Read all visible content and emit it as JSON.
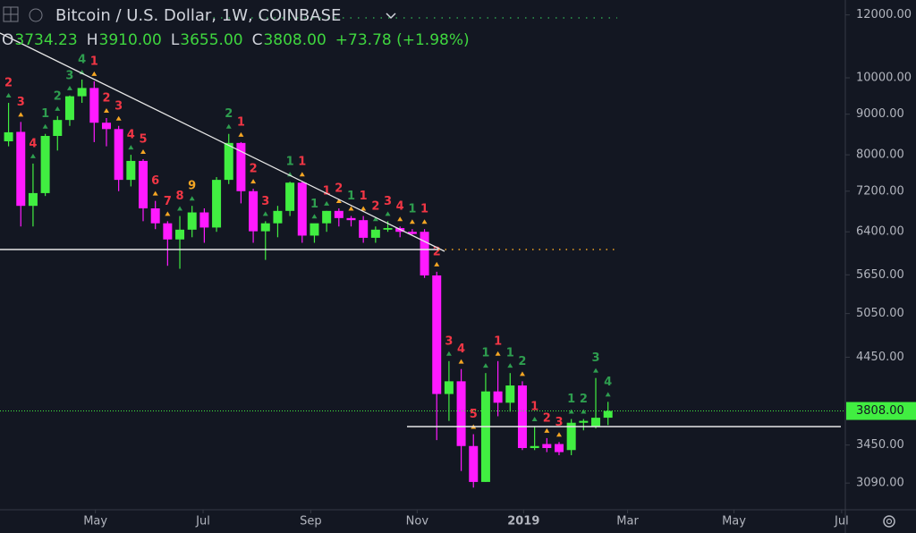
{
  "header": {
    "title": "Bitcoin / U.S. Dollar, 1W, COINBASE",
    "ohlc": [
      {
        "key": "O",
        "value": "3734.23"
      },
      {
        "key": "H",
        "value": "3910.00"
      },
      {
        "key": "L",
        "value": "3655.00"
      },
      {
        "key": "C",
        "value": "3808.00"
      }
    ],
    "change": "+73.78 (+1.98%)"
  },
  "chart_data": {
    "type": "candlestick",
    "log_scale": true,
    "up_color": "#41ee41",
    "down_color": "#ff1aff",
    "open": [
      8320,
      8550,
      6900,
      7160,
      8450,
      8850,
      9480,
      9710,
      8780,
      8620,
      7440,
      7860,
      6850,
      6560,
      6260,
      6440,
      6770,
      6480,
      7440,
      8280,
      7200,
      6410,
      6560,
      6800,
      7380,
      6330,
      6560,
      6800,
      6660,
      6620,
      6290,
      6440,
      6470,
      6400,
      6400,
      5640,
      4000,
      4150,
      3440,
      3100,
      4030,
      3900,
      4100,
      3420,
      3460,
      3460,
      3400,
      3680,
      3640,
      3734.23
    ],
    "high": [
      9300,
      8800,
      7800,
      8500,
      8950,
      9500,
      9950,
      9900,
      8900,
      8700,
      8000,
      7900,
      7000,
      6600,
      6700,
      6900,
      6850,
      7500,
      8500,
      8300,
      7250,
      6600,
      6900,
      7400,
      7400,
      6550,
      6800,
      6850,
      6700,
      6700,
      6500,
      6600,
      6500,
      6450,
      6450,
      5700,
      4400,
      4300,
      3560,
      4250,
      4400,
      4250,
      4150,
      3640,
      3520,
      3480,
      3720,
      3720,
      4190,
      3910
    ],
    "low": [
      8200,
      6500,
      6500,
      7100,
      8100,
      8700,
      9300,
      8300,
      8200,
      7200,
      7300,
      6600,
      6450,
      5800,
      5750,
      6300,
      6200,
      6400,
      7350,
      6950,
      6200,
      5900,
      6300,
      6700,
      6200,
      6200,
      6400,
      6500,
      6500,
      6200,
      6200,
      6400,
      6300,
      6350,
      5600,
      3500,
      3700,
      3200,
      3050,
      3100,
      3750,
      3800,
      3400,
      3400,
      3380,
      3350,
      3350,
      3600,
      3620,
      3655
    ],
    "close": [
      8540,
      6900,
      7160,
      8450,
      8850,
      9480,
      9710,
      8780,
      8620,
      7440,
      7860,
      6850,
      6560,
      6260,
      6440,
      6770,
      6480,
      7440,
      8280,
      7200,
      6410,
      6560,
      6800,
      7380,
      6330,
      6560,
      6800,
      6660,
      6620,
      6290,
      6440,
      6470,
      6400,
      6360,
      5640,
      4000,
      4150,
      3440,
      3100,
      4030,
      3900,
      4100,
      3420,
      3440,
      3420,
      3380,
      3680,
      3700,
      3734,
      3808
    ],
    "td_labels": [
      {
        "text": "2",
        "color": "#f23645"
      },
      {
        "text": "3",
        "color": "#f23645"
      },
      {
        "text": "4",
        "color": "#f23645"
      },
      {
        "text": "1",
        "color": "#2e9e4f"
      },
      {
        "text": "2",
        "color": "#2e9e4f"
      },
      {
        "text": "3",
        "color": "#2e9e4f"
      },
      {
        "text": "4",
        "color": "#2e9e4f"
      },
      {
        "text": "1",
        "color": "#f23645"
      },
      {
        "text": "2",
        "color": "#f23645"
      },
      {
        "text": "3",
        "color": "#f23645"
      },
      {
        "text": "4",
        "color": "#f23645"
      },
      {
        "text": "5",
        "color": "#f23645"
      },
      {
        "text": "6",
        "color": "#f23645"
      },
      {
        "text": "7",
        "color": "#f23645"
      },
      {
        "text": "8",
        "color": "#f23645"
      },
      {
        "text": "9",
        "color": "#f5a623"
      },
      null,
      null,
      {
        "text": "2",
        "color": "#2e9e4f"
      },
      {
        "text": "1",
        "color": "#f23645"
      },
      {
        "text": "2",
        "color": "#f23645"
      },
      {
        "text": "3",
        "color": "#f23645"
      },
      null,
      {
        "text": "1",
        "color": "#2e9e4f"
      },
      {
        "text": "1",
        "color": "#f23645"
      },
      {
        "text": "1",
        "color": "#2e9e4f"
      },
      {
        "text": "1",
        "color": "#f23645"
      },
      {
        "text": "2",
        "color": "#f23645"
      },
      {
        "text": "1",
        "color": "#2e9e4f"
      },
      {
        "text": "1",
        "color": "#f23645"
      },
      {
        "text": "2",
        "color": "#f23645"
      },
      {
        "text": "3",
        "color": "#f23645"
      },
      {
        "text": "4",
        "color": "#f23645"
      },
      {
        "text": "1",
        "color": "#2e9e4f"
      },
      {
        "text": "1",
        "color": "#f23645"
      },
      {
        "text": "2",
        "color": "#f23645"
      },
      {
        "text": "3",
        "color": "#f23645"
      },
      {
        "text": "4",
        "color": "#f23645"
      },
      {
        "text": "5",
        "color": "#f23645"
      },
      {
        "text": "1",
        "color": "#2e9e4f"
      },
      {
        "text": "1",
        "color": "#f23645"
      },
      {
        "text": "1",
        "color": "#2e9e4f"
      },
      {
        "text": "2",
        "color": "#2e9e4f"
      },
      {
        "text": "1",
        "color": "#f23645"
      },
      {
        "text": "2",
        "color": "#f23645"
      },
      {
        "text": "3",
        "color": "#f23645"
      },
      {
        "text": "1",
        "color": "#2e9e4f"
      },
      {
        "text": "2",
        "color": "#2e9e4f"
      },
      {
        "text": "3",
        "color": "#2e9e4f"
      },
      {
        "text": "4",
        "color": "#2e9e4f"
      }
    ],
    "xlim": [
      -0.7,
      68.4
    ],
    "xticks": [
      {
        "value": 7.1,
        "label": "May"
      },
      {
        "value": 15.9,
        "label": "Jul"
      },
      {
        "value": 24.7,
        "label": "Sep"
      },
      {
        "value": 33.4,
        "label": "Nov"
      },
      {
        "value": 42.1,
        "label": "2019",
        "bold": true
      },
      {
        "value": 50.6,
        "label": "Mar"
      },
      {
        "value": 59.3,
        "label": "May"
      },
      {
        "value": 68.1,
        "label": "Jul"
      }
    ],
    "ylim": [
      2860,
      12530
    ],
    "yticks": [
      {
        "value": 12000,
        "label": "12000.00"
      },
      {
        "value": 10000,
        "label": "10000.00"
      },
      {
        "value": 9000,
        "label": "9000.00"
      },
      {
        "value": 8000,
        "label": "8000.00"
      },
      {
        "value": 7200,
        "label": "7200.00"
      },
      {
        "value": 6400,
        "label": "6400.00"
      },
      {
        "value": 5650,
        "label": "5650.00"
      },
      {
        "value": 5050,
        "label": "5050.00"
      },
      {
        "value": 4450,
        "label": "4450.00"
      },
      {
        "value": 3450,
        "label": "3450.00"
      },
      {
        "value": 3090,
        "label": "3090.00"
      }
    ],
    "last_price": {
      "value": 3808,
      "label": "3808.00",
      "color": "#41ee41"
    }
  }
}
